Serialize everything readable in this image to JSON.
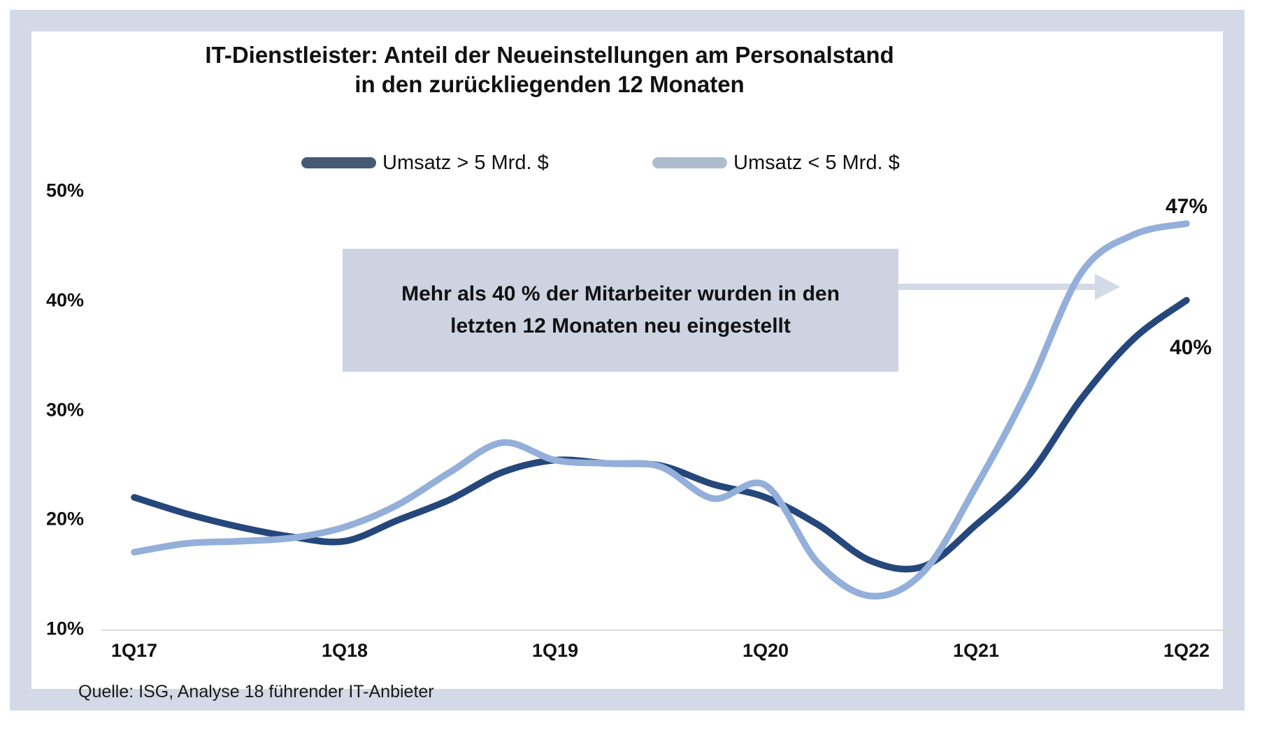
{
  "header": {
    "title_line1": "IT-Dienstleister: Anteil der Neueinstellungen am Personalstand",
    "title_line2": "in den zurückliegenden 12 Monaten"
  },
  "annotation": {
    "line1": "Mehr als 40 % der Mitarbeiter wurden in den",
    "line2": "letzten 12 Monaten neu eingestellt"
  },
  "source": "Quelle: ISG, Analyse 18 führender IT-Anbieter",
  "colors": {
    "frame": "#D3D9E6",
    "annotation_box": "#CDD3E1",
    "arrow": "#D3D9E5",
    "axis_line": "#D9D9D9",
    "line_dark": "#25477B",
    "line_light": "#93AFDA",
    "legend_dark": "#475A74",
    "legend_light": "#AEBCCE"
  },
  "chart_data": {
    "type": "line",
    "title": "IT-Dienstleister: Anteil der Neueinstellungen am Personalstand in den zurückliegenden 12 Monaten",
    "unit": "%",
    "ylim": [
      10,
      50
    ],
    "grid": false,
    "legend_position": "top",
    "y_tick_values": [
      50,
      40,
      30,
      20,
      10
    ],
    "y_tick_labels": [
      "50%",
      "40%",
      "30%",
      "20%",
      "10%"
    ],
    "x_tick_labels": [
      "1Q17",
      "1Q18",
      "1Q19",
      "1Q20",
      "1Q21",
      "1Q22"
    ],
    "categories": [
      "1Q17",
      "2Q17",
      "3Q17",
      "4Q17",
      "1Q18",
      "2Q18",
      "3Q18",
      "4Q18",
      "1Q19",
      "2Q19",
      "3Q19",
      "4Q19",
      "1Q20",
      "2Q20",
      "3Q20",
      "4Q20",
      "1Q21",
      "2Q21",
      "3Q21",
      "4Q21",
      "1Q22"
    ],
    "series": [
      {
        "name": "Umsatz > 5 Mrd. $",
        "color": "#25477B",
        "legend_color": "#475A74",
        "end_label": "40%",
        "values": [
          22,
          20.5,
          19.3,
          18.4,
          18,
          19.9,
          21.8,
          24.3,
          25.4,
          25.1,
          24.9,
          23.2,
          22,
          19.5,
          16.2,
          15.7,
          19.5,
          24,
          31,
          36.5,
          40
        ]
      },
      {
        "name": "Umsatz < 5 Mrd. $",
        "color": "#93AFDA",
        "legend_color": "#AEBCCE",
        "end_label": "47%",
        "values": [
          17,
          17.8,
          18,
          18.3,
          19.3,
          21.3,
          24.3,
          27,
          25.4,
          25.1,
          24.8,
          21.9,
          23.1,
          16,
          13,
          15.2,
          23,
          32,
          42.5,
          46,
          47
        ]
      }
    ]
  }
}
